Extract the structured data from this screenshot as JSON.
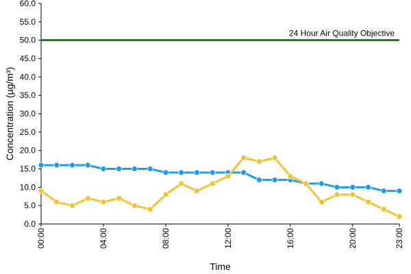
{
  "chart_data": {
    "type": "line",
    "xlabel": "Time",
    "ylabel": "Concentration (µg/m³)",
    "ylim": [
      0,
      60
    ],
    "y_ticks": [
      "0.0",
      "5.0",
      "10.0",
      "15.0",
      "20.0",
      "25.0",
      "30.0",
      "35.0",
      "40.0",
      "45.0",
      "50.0",
      "55.0",
      "60.0"
    ],
    "x": [
      "00:00",
      "01:00",
      "02:00",
      "03:00",
      "04:00",
      "05:00",
      "06:00",
      "07:00",
      "08:00",
      "09:00",
      "10:00",
      "11:00",
      "12:00",
      "13:00",
      "14:00",
      "15:00",
      "16:00",
      "17:00",
      "18:00",
      "19:00",
      "20:00",
      "21:00",
      "22:00",
      "23:00"
    ],
    "x_tick_labels": [
      "00:00",
      "04:00",
      "08:00",
      "12:00",
      "16:00",
      "20:00",
      "23:00"
    ],
    "x_tick_index": [
      0,
      4,
      8,
      12,
      16,
      20,
      23
    ],
    "grid": false,
    "series": [
      {
        "color": "#1e9be9",
        "values": [
          16,
          16,
          16,
          16,
          15,
          15,
          15,
          15,
          14,
          14,
          14,
          14,
          14,
          14,
          12,
          12,
          12,
          11,
          11,
          10,
          10,
          10,
          9,
          9
        ]
      },
      {
        "color": "#f2c230",
        "values": [
          9,
          6,
          5,
          7,
          6,
          7,
          5,
          4,
          8,
          11,
          9,
          11,
          13,
          18,
          17,
          18,
          13,
          11,
          6,
          8,
          8,
          6,
          4,
          2
        ]
      }
    ],
    "reference_line": {
      "value": 50,
      "label": "24 Hour Air Quality Objective",
      "color": "#1e7a1e"
    }
  }
}
